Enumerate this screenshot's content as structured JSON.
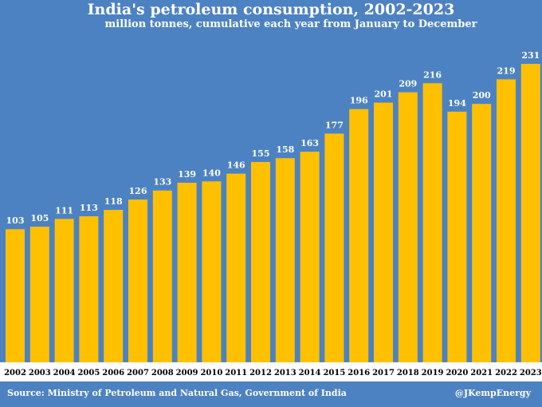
{
  "chart_data": {
    "type": "bar",
    "title": "India's petroleum consumption, 2002-2023",
    "subtitle": "million tonnes, cumulative each year from January to December",
    "categories": [
      "2002",
      "2003",
      "2004",
      "2005",
      "2006",
      "2007",
      "2008",
      "2009",
      "2010",
      "2011",
      "2012",
      "2013",
      "2014",
      "2015",
      "2016",
      "2017",
      "2018",
      "2019",
      "2020",
      "2021",
      "2022",
      "2023"
    ],
    "values": [
      103,
      105,
      111,
      113,
      118,
      126,
      133,
      139,
      140,
      146,
      155,
      158,
      163,
      177,
      196,
      201,
      209,
      216,
      194,
      200,
      219,
      231
    ],
    "ylim": [
      0,
      231
    ],
    "grid": false,
    "xlabel": "",
    "ylabel": "",
    "colors": {
      "background": "#4d82c2",
      "bar": "#ffc000",
      "value_label": "#ffffff"
    }
  },
  "footer": {
    "source": "Source: Ministry of Petroleum and Natural Gas, Government of India",
    "handle": "@JKempEnergy"
  }
}
